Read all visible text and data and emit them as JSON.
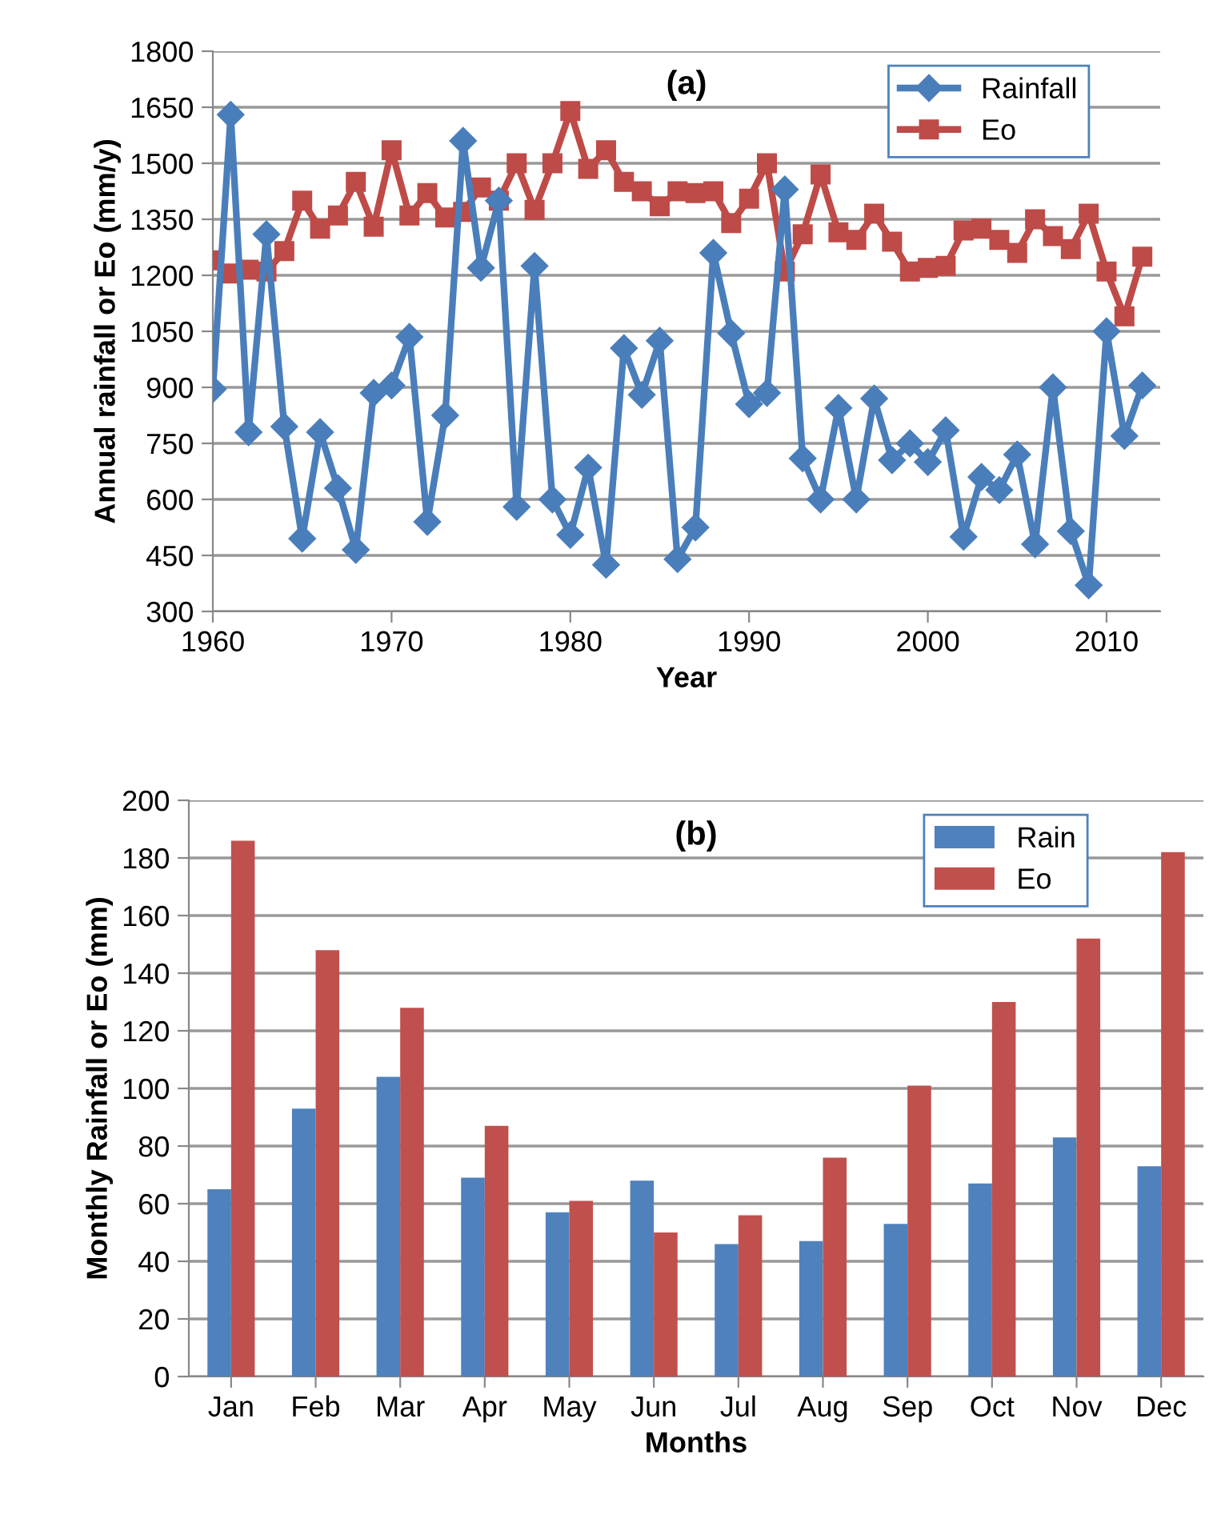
{
  "chart_data": [
    {
      "type": "line",
      "title": "(a)",
      "xlabel": "Year",
      "ylabel": "Annual rainfall or Eo (mm/y)",
      "x": [
        1960,
        1961,
        1962,
        1963,
        1964,
        1965,
        1966,
        1967,
        1968,
        1969,
        1970,
        1971,
        1972,
        1973,
        1974,
        1975,
        1976,
        1977,
        1978,
        1979,
        1980,
        1981,
        1982,
        1983,
        1984,
        1985,
        1986,
        1987,
        1988,
        1989,
        1990,
        1991,
        1992,
        1993,
        1994,
        1995,
        1996,
        1997,
        1998,
        1999,
        2000,
        2001,
        2002,
        2003,
        2004,
        2005,
        2006,
        2007,
        2008,
        2009,
        2010,
        2011,
        2012
      ],
      "series": [
        {
          "name": "Rainfall",
          "color": "#4a7ebb",
          "marker": "diamond",
          "values": [
            895,
            1630,
            780,
            1310,
            795,
            495,
            780,
            630,
            465,
            885,
            905,
            1035,
            540,
            825,
            1560,
            1220,
            1400,
            580,
            1225,
            600,
            505,
            685,
            425,
            1005,
            880,
            1025,
            440,
            525,
            1260,
            1045,
            855,
            885,
            1430,
            710,
            600,
            845,
            600,
            870,
            705,
            750,
            700,
            785,
            500,
            660,
            625,
            720,
            480,
            900,
            515,
            370,
            1050,
            770,
            905
          ]
        },
        {
          "name": "Eo",
          "color": "#be4b48",
          "marker": "square",
          "values": [
            1240,
            1205,
            1215,
            1210,
            1265,
            1400,
            1325,
            1360,
            1450,
            1330,
            1535,
            1360,
            1420,
            1355,
            1370,
            1435,
            1400,
            1500,
            1375,
            1500,
            1640,
            1485,
            1535,
            1450,
            1425,
            1385,
            1425,
            1420,
            1425,
            1340,
            1405,
            1500,
            1210,
            1310,
            1470,
            1315,
            1295,
            1365,
            1290,
            1210,
            1220,
            1225,
            1320,
            1325,
            1295,
            1260,
            1350,
            1305,
            1270,
            1365,
            1210,
            1090,
            1250
          ]
        }
      ],
      "xlim": [
        1960,
        2013
      ],
      "xticks": [
        1960,
        1970,
        1980,
        1990,
        2000,
        2010
      ],
      "ylim": [
        300,
        1800
      ],
      "yticks": [
        300,
        450,
        600,
        750,
        900,
        1050,
        1200,
        1350,
        1500,
        1650,
        1800
      ],
      "grid": "y",
      "legend": "top right"
    },
    {
      "type": "bar",
      "title": "(b)",
      "xlabel": "Months",
      "ylabel": "Monthly Rainfall or Eo (mm)",
      "categories": [
        "Jan",
        "Feb",
        "Mar",
        "Apr",
        "May",
        "Jun",
        "Jul",
        "Aug",
        "Sep",
        "Oct",
        "Nov",
        "Dec"
      ],
      "series": [
        {
          "name": "Rain",
          "color": "#4f81bd",
          "values": [
            65,
            93,
            104,
            69,
            57,
            68,
            46,
            47,
            53,
            67,
            83,
            73
          ]
        },
        {
          "name": "Eo",
          "color": "#c0504d",
          "values": [
            186,
            148,
            128,
            87,
            61,
            50,
            56,
            76,
            101,
            130,
            152,
            182
          ]
        }
      ],
      "ylim": [
        0,
        200
      ],
      "yticks": [
        0,
        20,
        40,
        60,
        80,
        100,
        120,
        140,
        160,
        180,
        200
      ],
      "grid": "y",
      "legend": "top right"
    }
  ]
}
